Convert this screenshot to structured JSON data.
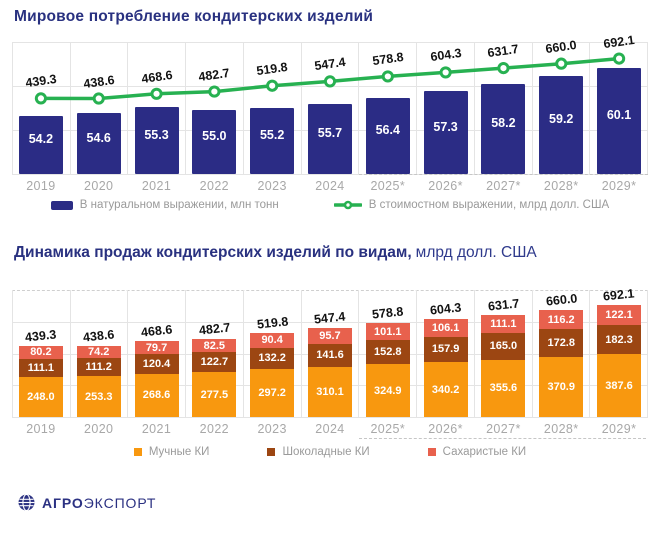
{
  "colors": {
    "navy_bar": "#2b2c85",
    "green_line": "#27b151",
    "title_navy": "#293180",
    "orange": "#f8980f",
    "brown": "#9c4612",
    "coral": "#e8614d",
    "axis_gray": "#a8a8a8",
    "legend_gray": "#9a9a9a",
    "grid_gray": "#e4e4e4"
  },
  "chart1": {
    "title": "Мировое потребление кондитерских изделий",
    "legend": [
      {
        "label": "В натуральном выражении, млн тонн",
        "swatch": "bar",
        "color": "#2b2c85"
      },
      {
        "label": "В стоимостном выражении, млрд долл. США",
        "swatch": "line",
        "color": "#27b151"
      }
    ]
  },
  "chart2": {
    "title_bold": "Динамика продаж кондитерских изделий по видам,",
    "title_unit": "млрд долл. США",
    "legend": [
      {
        "label": "Мучные КИ",
        "color": "#f8980f"
      },
      {
        "label": "Шоколадные КИ",
        "color": "#9c4612"
      },
      {
        "label": "Сахаристые КИ",
        "color": "#e8614d"
      }
    ]
  },
  "chart_data": [
    {
      "type": "bar",
      "title": "Мировое потребление кондитерских изделий",
      "categories": [
        "2019",
        "2020",
        "2021",
        "2022",
        "2023",
        "2024",
        "2025*",
        "2026*",
        "2027*",
        "2028*",
        "2029*"
      ],
      "series": [
        {
          "name": "В натуральном выражении, млн тонн",
          "type": "bar",
          "color": "#2b2c85",
          "values": [
            54.2,
            54.6,
            55.3,
            55.0,
            55.2,
            55.7,
            56.4,
            57.3,
            58.2,
            59.2,
            60.1
          ]
        },
        {
          "name": "В стоимостном выражении, млрд долл. США",
          "type": "line",
          "color": "#27b151",
          "values": [
            439.3,
            438.6,
            468.6,
            482.7,
            519.8,
            547.4,
            578.8,
            604.3,
            631.7,
            660.0,
            692.1
          ]
        }
      ],
      "xlabel": "",
      "ylabel": "",
      "grid": true,
      "legend_position": "bottom",
      "notes": "years with * are forecast"
    },
    {
      "type": "bar",
      "subtype": "stacked",
      "title": "Динамика продаж кондитерских изделий по видам, млрд долл. США",
      "categories": [
        "2019",
        "2020",
        "2021",
        "2022",
        "2023",
        "2024",
        "2025*",
        "2026*",
        "2027*",
        "2028*",
        "2029*"
      ],
      "series": [
        {
          "name": "Мучные КИ",
          "color": "#f8980f",
          "values": [
            248.0,
            253.3,
            268.6,
            277.5,
            297.2,
            310.1,
            324.9,
            340.2,
            355.6,
            370.9,
            387.6
          ]
        },
        {
          "name": "Шоколадные КИ",
          "color": "#9c4612",
          "values": [
            111.1,
            111.2,
            120.4,
            122.7,
            132.2,
            141.6,
            152.8,
            157.9,
            165.0,
            172.8,
            182.3
          ]
        },
        {
          "name": "Сахаристые КИ",
          "color": "#e8614d",
          "values": [
            80.2,
            74.2,
            79.7,
            82.5,
            90.4,
            95.7,
            101.1,
            106.1,
            111.1,
            116.2,
            122.1
          ]
        }
      ],
      "totals": [
        439.3,
        438.6,
        468.6,
        482.7,
        519.8,
        547.4,
        578.8,
        604.3,
        631.7,
        660.0,
        692.1
      ],
      "xlabel": "",
      "ylabel": "",
      "grid": true,
      "legend_position": "bottom",
      "notes": "years with * are forecast"
    }
  ],
  "logo": {
    "icon": "globe-icon",
    "brand_bold": "АГРО",
    "brand_light": "ЭКСПОРТ"
  }
}
